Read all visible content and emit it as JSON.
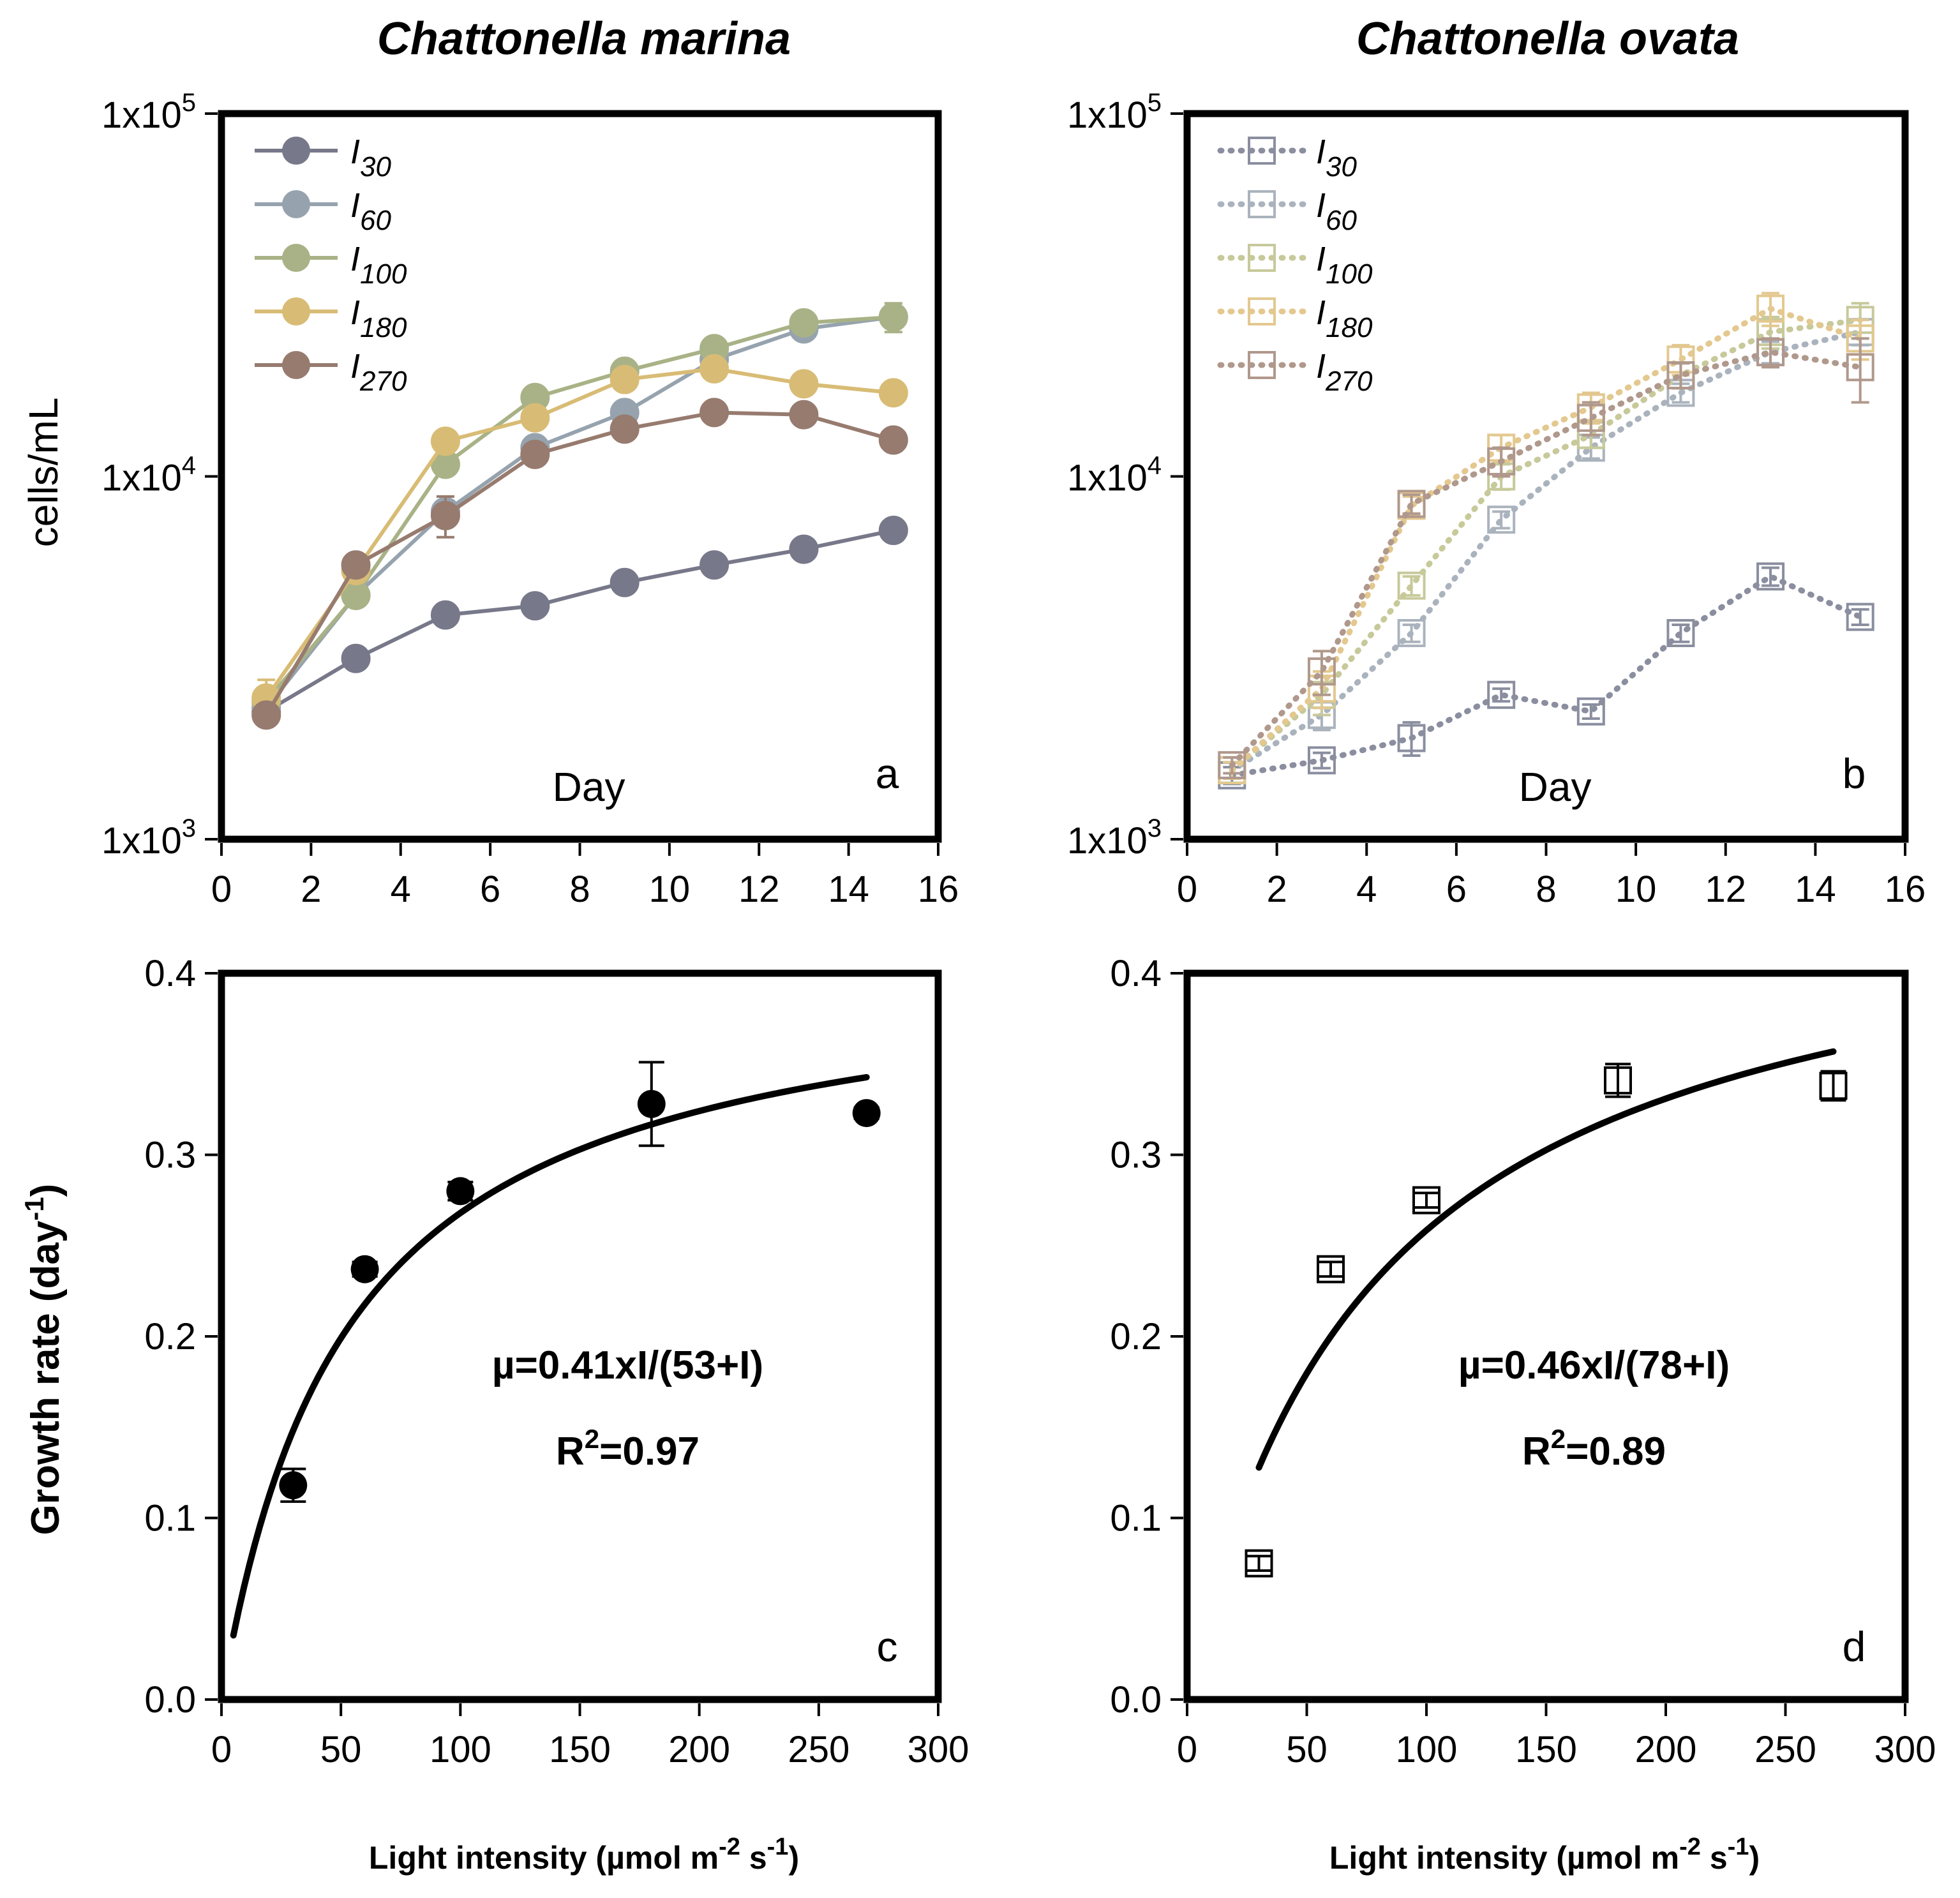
{
  "figure": {
    "panel_titles": [
      "Chattonella marina",
      "Chattonella ovata"
    ],
    "y_label_top": "cells/mL",
    "y_label_bottom": "Growth rate (day",
    "y_label_bottom_sup": "-1",
    "y_label_bottom_close": ")",
    "x_label_bottom_a": "Light intensity (µmol m",
    "x_label_bottom_sup1": "-2",
    "x_label_bottom_b": " s",
    "x_label_bottom_sup2": "-1",
    "x_label_bottom_close": ")"
  },
  "chart_data": [
    {
      "id": "a",
      "type": "line",
      "panel_label": "a",
      "title": "Chattonella marina",
      "xlabel": "Day",
      "ylabel": "cells/mL",
      "yscale": "log",
      "xlim": [
        0,
        16
      ],
      "ylim": [
        1000,
        100000
      ],
      "xticks": [
        "0",
        "2",
        "4",
        "6",
        "8",
        "10",
        "12",
        "14",
        "16"
      ],
      "ytick_labels": [
        {
          "value": 1000,
          "base": "1x10",
          "exp": "3"
        },
        {
          "value": 10000,
          "base": "1x10",
          "exp": "4"
        },
        {
          "value": 100000,
          "base": "1x10",
          "exp": "5"
        }
      ],
      "marker": "filled-circle",
      "legend_position": "top-left",
      "x": [
        1,
        3,
        5,
        7,
        9,
        11,
        13,
        15
      ],
      "series": [
        {
          "name": "I",
          "sub": "30",
          "color": "#777889",
          "values": [
            2250,
            3150,
            4150,
            4400,
            5100,
            5700,
            6300,
            7100
          ],
          "err": [
            0,
            0,
            0,
            0,
            0,
            0,
            0,
            0
          ]
        },
        {
          "name": "I",
          "sub": "60",
          "color": "#96a3ae",
          "values": [
            2300,
            4700,
            8000,
            12000,
            15000,
            21000,
            25500,
            27500
          ],
          "err": [
            0,
            0,
            0,
            0,
            0,
            0,
            0,
            0
          ]
        },
        {
          "name": "I",
          "sub": "100",
          "color": "#a8b286",
          "values": [
            2400,
            4700,
            10800,
            16500,
            19500,
            22500,
            26500,
            27500
          ],
          "err": [
            0,
            0,
            0,
            0,
            0,
            0,
            0,
            2500
          ]
        },
        {
          "name": "I",
          "sub": "180",
          "color": "#d8bc75",
          "values": [
            2450,
            5500,
            12500,
            14500,
            18500,
            19800,
            18000,
            17000
          ],
          "err": [
            300,
            0,
            0,
            0,
            0,
            0,
            1000,
            0
          ]
        },
        {
          "name": "I",
          "sub": "270",
          "color": "#977b6f",
          "values": [
            2200,
            5700,
            7800,
            11500,
            13500,
            15000,
            14800,
            12600
          ],
          "err": [
            0,
            0,
            1000,
            0,
            0,
            0,
            0,
            0
          ]
        }
      ]
    },
    {
      "id": "b",
      "type": "line",
      "panel_label": "b",
      "title": "Chattonella ovata",
      "xlabel": "Day",
      "ylabel": "cells/mL",
      "yscale": "log",
      "xlim": [
        0,
        16
      ],
      "ylim": [
        1000,
        100000
      ],
      "xticks": [
        "0",
        "2",
        "4",
        "6",
        "8",
        "10",
        "12",
        "14",
        "16"
      ],
      "ytick_labels": [
        {
          "value": 1000,
          "base": "1x10",
          "exp": "3"
        },
        {
          "value": 10000,
          "base": "1x10",
          "exp": "4"
        },
        {
          "value": 100000,
          "base": "1x10",
          "exp": "5"
        }
      ],
      "marker": "open-square",
      "line_style": "dotted",
      "legend_position": "top-left",
      "x": [
        1,
        3,
        5,
        7,
        9,
        11,
        13,
        15
      ],
      "series": [
        {
          "name": "I",
          "sub": "30",
          "color": "#8a8e9f",
          "values": [
            1500,
            1650,
            1900,
            2500,
            2250,
            3700,
            5300,
            4100
          ],
          "err": [
            80,
            80,
            200,
            100,
            100,
            200,
            300,
            200
          ]
        },
        {
          "name": "I",
          "sub": "60",
          "color": "#aab3bd",
          "values": [
            1550,
            2200,
            3700,
            7600,
            12000,
            17000,
            22000,
            25000
          ],
          "err": [
            80,
            200,
            200,
            400,
            800,
            1000,
            1500,
            2000
          ]
        },
        {
          "name": "I",
          "sub": "100",
          "color": "#c7c99a",
          "values": [
            1550,
            2500,
            5000,
            10000,
            13000,
            19000,
            25000,
            27000
          ],
          "err": [
            80,
            300,
            300,
            800,
            1000,
            1500,
            2500,
            3000
          ]
        },
        {
          "name": "I",
          "sub": "180",
          "color": "#e3c88f",
          "values": [
            1550,
            2600,
            8300,
            12000,
            15500,
            21000,
            29000,
            24000
          ],
          "err": [
            80,
            300,
            500,
            1000,
            1500,
            2000,
            3000,
            3000
          ]
        },
        {
          "name": "I",
          "sub": "270",
          "color": "#b0988c",
          "values": [
            1600,
            2900,
            8400,
            11000,
            14500,
            19000,
            22000,
            20000
          ],
          "err": [
            80,
            400,
            500,
            1000,
            1500,
            1500,
            2000,
            4000
          ]
        }
      ]
    },
    {
      "id": "c",
      "type": "scatter",
      "panel_label": "c",
      "xlabel": "Light intensity (µmol m-2 s-1)",
      "ylabel": "Growth rate (day-1)",
      "xlim": [
        0,
        300
      ],
      "ylim": [
        0,
        0.4
      ],
      "xticks": [
        "0",
        "50",
        "100",
        "150",
        "200",
        "250",
        "300"
      ],
      "yticks": [
        "0.0",
        "0.1",
        "0.2",
        "0.3",
        "0.4"
      ],
      "marker": "filled-circle",
      "points": {
        "x": [
          30,
          60,
          100,
          180,
          270
        ],
        "y": [
          0.118,
          0.237,
          0.28,
          0.328,
          0.323
        ],
        "err": [
          0.009,
          0.004,
          0.005,
          0.023,
          0.003
        ]
      },
      "fit": {
        "mu_max": 0.41,
        "k": 53,
        "x_range": [
          5,
          270
        ]
      },
      "equation": "µ=0.41xI/(53+I)",
      "r2_prefix": "R",
      "r2_sup": "2",
      "r2_value": "=0.97"
    },
    {
      "id": "d",
      "type": "scatter",
      "panel_label": "d",
      "xlabel": "Light intensity (µmol m-2 s-1)",
      "ylabel": "Growth rate (day-1)",
      "xlim": [
        0,
        300
      ],
      "ylim": [
        0,
        0.4
      ],
      "xticks": [
        "0",
        "50",
        "100",
        "150",
        "200",
        "250",
        "300"
      ],
      "yticks": [
        "0.0",
        "0.1",
        "0.2",
        "0.3",
        "0.4"
      ],
      "marker": "open-square",
      "points": {
        "x": [
          30,
          60,
          100,
          180,
          270
        ],
        "y": [
          0.075,
          0.237,
          0.275,
          0.341,
          0.338
        ],
        "err": [
          0.004,
          0.004,
          0.004,
          0.009,
          0.008
        ]
      },
      "fit": {
        "mu_max": 0.46,
        "k": 78,
        "x_range": [
          30,
          270
        ]
      },
      "equation": "µ=0.46xI/(78+I)",
      "r2_prefix": "R",
      "r2_sup": "2",
      "r2_value": "=0.89"
    }
  ]
}
